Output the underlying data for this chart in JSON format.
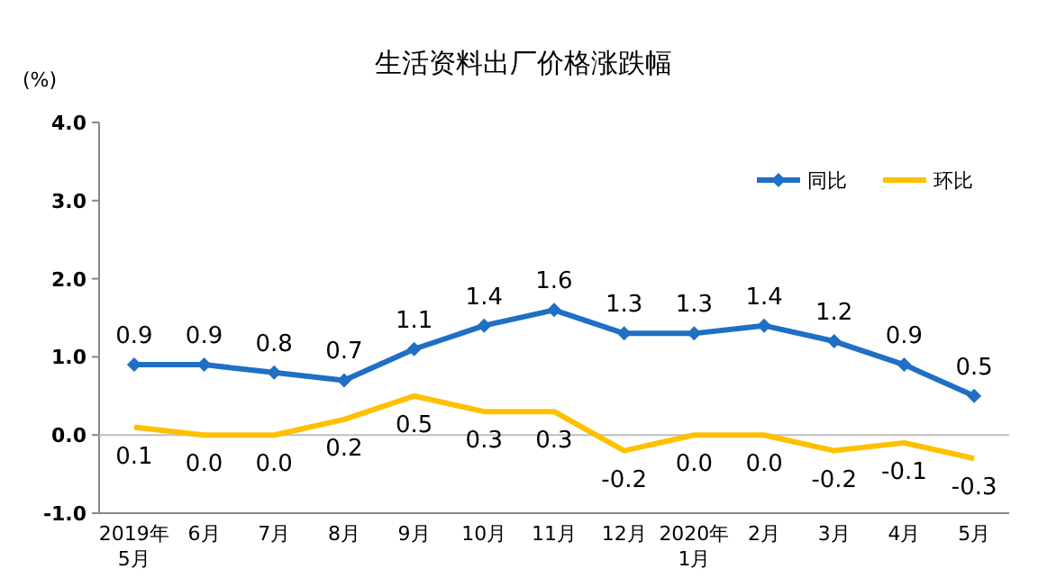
{
  "chart_data": {
    "type": "line",
    "title": "生活资料出厂价格涨跌幅",
    "ylabel": "(%)",
    "categories": [
      "2019年\n5月",
      "6月",
      "7月",
      "8月",
      "9月",
      "10月",
      "11月",
      "12月",
      "2020年\n1月",
      "2月",
      "3月",
      "4月",
      "5月"
    ],
    "series": [
      {
        "name": "同比",
        "color": "#1f6fc5",
        "marker": "diamond",
        "values": [
          0.9,
          0.9,
          0.8,
          0.7,
          1.1,
          1.4,
          1.6,
          1.3,
          1.3,
          1.4,
          1.2,
          0.9,
          0.5
        ],
        "value_labels": [
          "0.9",
          "0.9",
          "0.8",
          "0.7",
          "1.1",
          "1.4",
          "1.6",
          "1.3",
          "1.3",
          "1.4",
          "1.2",
          "0.9",
          "0.5"
        ]
      },
      {
        "name": "环比",
        "color": "#ffc000",
        "marker": "none",
        "values": [
          0.1,
          0.0,
          0.0,
          0.2,
          0.5,
          0.3,
          0.3,
          -0.2,
          0.0,
          0.0,
          -0.2,
          -0.1,
          -0.3
        ],
        "value_labels": [
          "0.1",
          "0.0",
          "0.0",
          "0.2",
          "0.5",
          "0.3",
          "0.3",
          "-0.2",
          "0.0",
          "0.0",
          "-0.2",
          "-0.1",
          "-0.3"
        ]
      }
    ],
    "ylim": [
      -1,
      4
    ],
    "yticks": [
      {
        "value": -1,
        "label": "-1.0"
      },
      {
        "value": 0,
        "label": "0.0"
      },
      {
        "value": 1,
        "label": "1.0"
      },
      {
        "value": 2,
        "label": "2.0"
      },
      {
        "value": 3,
        "label": "3.0"
      },
      {
        "value": 4,
        "label": "4.0"
      }
    ],
    "grid": false,
    "ref_lines": [
      {
        "axis": "y",
        "value": 0,
        "color": "#bfbfbf"
      }
    ],
    "legend": "top right",
    "line_style": "solid"
  }
}
